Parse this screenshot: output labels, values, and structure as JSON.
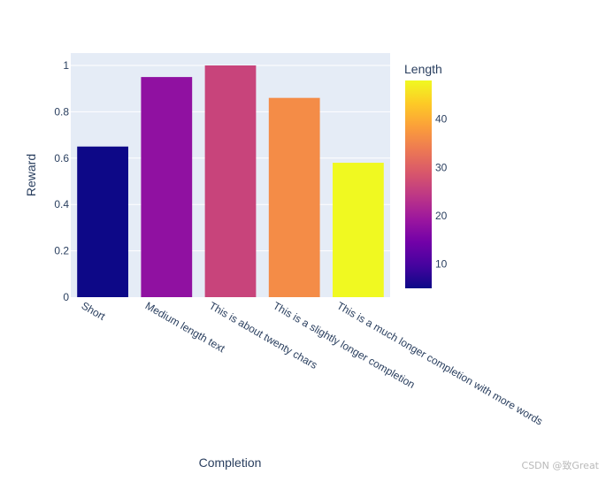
{
  "chart_data": {
    "type": "bar",
    "categories": [
      "Short",
      "Medium length text",
      "This is about twenty chars",
      "This is a slightly longer completion",
      "This is a much longer completion with more words"
    ],
    "values": [
      0.65,
      0.95,
      1.0,
      0.86,
      0.58
    ],
    "color_values": [
      5,
      18,
      26,
      36,
      48
    ],
    "title": "",
    "xlabel": "Completion",
    "ylabel": "Reward",
    "ylim": [
      0,
      1.0
    ],
    "yticks": [
      0,
      0.2,
      0.4,
      0.6,
      0.8,
      1
    ],
    "ytick_labels": [
      "0",
      "0.2",
      "0.4",
      "0.6",
      "0.8",
      "1"
    ],
    "colorbar": {
      "title": "Length",
      "range": [
        5,
        48
      ],
      "ticks": [
        10,
        20,
        30,
        40
      ],
      "colorscale": [
        "#0d0887",
        "#46039f",
        "#7201a8",
        "#9c179e",
        "#bd3786",
        "#d8576b",
        "#ed7953",
        "#fb9f3a",
        "#fdca26",
        "#f0f921"
      ]
    },
    "plot_background": "#e5ecf6",
    "grid": true
  },
  "watermark": "CSDN @致Great"
}
